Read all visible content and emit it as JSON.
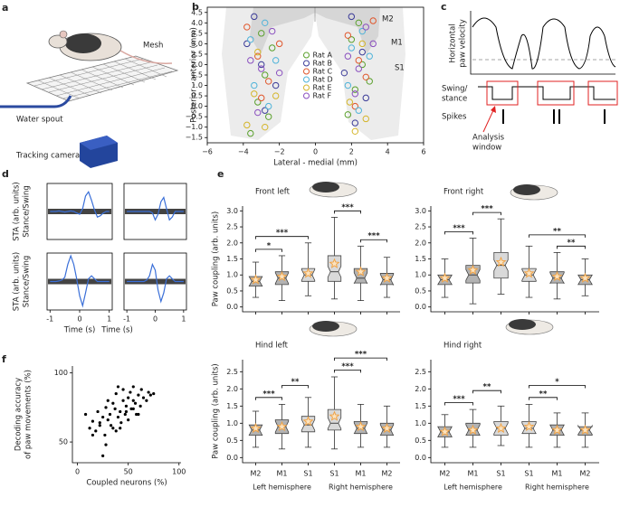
{
  "figure": {
    "panel_labels": [
      "a",
      "b",
      "c",
      "d",
      "e",
      "f"
    ],
    "a": {
      "mesh": "Mesh",
      "water_spout": "Water spout",
      "tracking_camera": "Tracking camera"
    },
    "c": {
      "velocity": [
        "Horizontal",
        "paw velocity"
      ],
      "swing_stance": [
        "Swing/",
        "stance"
      ],
      "spikes": "Spikes",
      "window": [
        "Analysis",
        "window"
      ]
    }
  },
  "chart_data": [
    {
      "type": "scatter",
      "xlabel": "Lateral - medial (mm)",
      "ylabel": "Posterior - anterior (mm)",
      "xlim": [
        -6,
        6
      ],
      "xticks": [
        {
          "value": -6,
          "label": "−6"
        },
        {
          "value": -4,
          "label": "−4"
        },
        {
          "value": -2,
          "label": "−2"
        },
        0,
        2,
        4,
        6
      ],
      "ylim": [
        -1.75,
        4.75
      ],
      "yticks": [
        {
          "value": -1.5,
          "label": "−1.5"
        },
        {
          "value": -1,
          "label": "−1.0"
        },
        {
          "value": -0.5,
          "label": "−0.5"
        },
        {
          "value": 0,
          "label": "0.0"
        },
        0.5,
        {
          "value": 1,
          "label": "1.0"
        },
        1.5,
        {
          "value": 2,
          "label": "2.0"
        },
        2.5,
        {
          "value": 3,
          "label": "3.0"
        },
        3.5,
        {
          "value": 4,
          "label": "4.0"
        },
        4.5
      ],
      "grid": false,
      "frame": "box",
      "marker": "open",
      "legend": "center",
      "annotations": [
        "M2",
        "M1",
        "S1"
      ],
      "series": [
        {
          "name": "Rat A",
          "color": "#5aa02c",
          "x": [
            -3.6,
            -3.2,
            -2.8,
            -2.4,
            -3.0,
            -2.6,
            1.8,
            2.2,
            2.6,
            2.0,
            2.4,
            3.0
          ],
          "values": [
            -1.3,
            0.2,
            1.5,
            2.8,
            3.5,
            -0.5,
            -0.4,
            0.8,
            2.0,
            3.2,
            4.0,
            1.2
          ]
        },
        {
          "name": "Rat B",
          "color": "#3b3b98",
          "x": [
            -3.4,
            -3.0,
            -2.2,
            -2.8,
            -3.8,
            2.0,
            2.6,
            2.8,
            1.6,
            2.2
          ],
          "values": [
            4.3,
            2.0,
            1.0,
            -0.2,
            3.0,
            4.3,
            2.6,
            0.4,
            1.6,
            -0.8
          ]
        },
        {
          "name": "Rat C",
          "color": "#e0562b",
          "x": [
            -3.8,
            -3.2,
            -2.6,
            -2.0,
            -3.0,
            1.8,
            2.4,
            2.2,
            2.8,
            3.2
          ],
          "values": [
            3.8,
            2.4,
            1.2,
            3.0,
            0.4,
            3.4,
            2.2,
            0.0,
            1.4,
            4.1
          ]
        },
        {
          "name": "Rat D",
          "color": "#4fb3d9",
          "x": [
            -3.6,
            -2.8,
            -2.2,
            -3.4,
            -2.6,
            2.0,
            2.6,
            1.8,
            2.4,
            3.0
          ],
          "values": [
            3.2,
            4.0,
            2.2,
            1.0,
            0.0,
            2.8,
            3.6,
            1.0,
            -0.2,
            2.4
          ]
        },
        {
          "name": "Rat E",
          "color": "#d4b52a",
          "x": [
            -3.8,
            -3.4,
            -2.8,
            -3.2,
            -2.2,
            2.2,
            2.8,
            1.9,
            2.6
          ],
          "values": [
            -0.9,
            0.6,
            -1.0,
            2.6,
            0.5,
            -1.2,
            -0.6,
            0.2,
            3.0
          ]
        },
        {
          "name": "Rat F",
          "color": "#8a4fbf",
          "x": [
            -3.0,
            -3.6,
            -2.4,
            -2.0,
            -3.2,
            2.4,
            1.8,
            2.8,
            2.2,
            3.2
          ],
          "values": [
            1.8,
            2.2,
            3.6,
            1.6,
            -0.3,
            1.8,
            2.4,
            3.8,
            0.6,
            3.0
          ]
        }
      ]
    },
    {
      "type": "line",
      "ylabel": [
        "STA (arb. units)",
        "Stance/Swing"
      ],
      "xlim": [
        -1.1,
        1.1
      ],
      "ylim": [
        -1,
        1
      ],
      "frame": "box",
      "color": "#3a6fd8",
      "x": [
        -1,
        -0.9,
        -0.8,
        -0.7,
        -0.6,
        -0.5,
        -0.4,
        -0.3,
        -0.2,
        -0.1,
        0,
        0.1,
        0.2,
        0.3,
        0.4,
        0.5,
        0.6,
        0.7,
        0.8,
        0.9,
        1
      ],
      "values": [
        0,
        0,
        0,
        0.02,
        0,
        -0.02,
        0,
        0.02,
        0,
        -0.05,
        -0.1,
        0.1,
        0.55,
        0.7,
        0.4,
        0.05,
        -0.2,
        -0.15,
        -0.05,
        0,
        0
      ]
    },
    {
      "type": "line",
      "xlim": [
        -1.1,
        1.1
      ],
      "ylim": [
        -1,
        1
      ],
      "frame": "box",
      "color": "#3a6fd8",
      "x": [
        -1,
        -0.9,
        -0.8,
        -0.7,
        -0.6,
        -0.5,
        -0.4,
        -0.3,
        -0.2,
        -0.1,
        0,
        0.1,
        0.2,
        0.3,
        0.4,
        0.5,
        0.6,
        0.7,
        0.8,
        0.9,
        1
      ],
      "values": [
        0,
        0,
        0,
        0,
        0,
        0,
        0,
        0,
        0,
        -0.05,
        -0.3,
        -0.1,
        0.35,
        0.5,
        0.1,
        -0.3,
        -0.2,
        0,
        0,
        0,
        0
      ]
    },
    {
      "type": "line",
      "ylabel": [
        "STA (arb. units)",
        "Stance/Swing"
      ],
      "xlabel": "Time (s)",
      "xlim": [
        -1.1,
        1.1
      ],
      "xticks": [
        -1,
        0,
        1
      ],
      "ylim": [
        -1,
        1
      ],
      "frame": "box",
      "color": "#3a6fd8",
      "x": [
        -1,
        -0.9,
        -0.8,
        -0.7,
        -0.6,
        -0.5,
        -0.4,
        -0.3,
        -0.2,
        -0.1,
        0,
        0.1,
        0.2,
        0.3,
        0.4,
        0.5,
        0.6,
        0.7,
        0.8,
        0.9,
        1
      ],
      "values": [
        0,
        0,
        0,
        0.02,
        0.05,
        0.15,
        0.6,
        0.9,
        0.6,
        0.1,
        -0.5,
        -0.85,
        -0.4,
        0.1,
        0.2,
        0.1,
        0,
        0,
        0,
        0,
        0
      ]
    },
    {
      "type": "line",
      "xlabel": "Time (s)",
      "xlim": [
        -1.1,
        1.1
      ],
      "xticks": [
        -1,
        0,
        1
      ],
      "ylim": [
        -1,
        1
      ],
      "frame": "box",
      "color": "#3a6fd8",
      "x": [
        -1,
        -0.9,
        -0.8,
        -0.7,
        -0.6,
        -0.5,
        -0.4,
        -0.3,
        -0.2,
        -0.1,
        0,
        0.1,
        0.2,
        0.3,
        0.4,
        0.5,
        0.6,
        0.7,
        0.8,
        0.9,
        1
      ],
      "values": [
        0,
        0,
        0,
        0,
        0,
        0,
        0,
        0.05,
        0.2,
        0.6,
        0.4,
        -0.3,
        -0.7,
        -0.4,
        0.1,
        0.2,
        0.1,
        0,
        0,
        0,
        0
      ]
    },
    {
      "type": "scatter",
      "xlabel": "Coupled neurons (%)",
      "ylabel": [
        "Decoding accuracy",
        "of paw movements (%)"
      ],
      "xlim": [
        -5,
        102
      ],
      "xticks": [
        0,
        50,
        100
      ],
      "ylim": [
        35,
        105
      ],
      "yticks": [
        50,
        100
      ],
      "grid": false,
      "frame": "axes",
      "marker": "filled",
      "series": [
        {
          "color": "#000000",
          "x": [
            8,
            12,
            15,
            18,
            20,
            22,
            25,
            27,
            28,
            30,
            30,
            32,
            33,
            35,
            35,
            37,
            38,
            40,
            40,
            42,
            43,
            45,
            45,
            47,
            48,
            50,
            50,
            52,
            53,
            55,
            55,
            57,
            58,
            60,
            62,
            63,
            65,
            68,
            70,
            72,
            25,
            28,
            15,
            22,
            38,
            42,
            48,
            55,
            60,
            75
          ],
          "values": [
            70,
            60,
            65,
            58,
            72,
            62,
            68,
            55,
            75,
            66,
            80,
            70,
            62,
            78,
            60,
            74,
            85,
            68,
            90,
            72,
            64,
            80,
            88,
            70,
            76,
            82,
            66,
            86,
            74,
            80,
            90,
            78,
            70,
            84,
            76,
            88,
            82,
            80,
            86,
            84,
            40,
            48,
            55,
            64,
            58,
            60,
            72,
            74,
            70,
            85
          ]
        }
      ]
    },
    {
      "type": "box",
      "title": "Front left",
      "ylabel": "Paw coupling (arb. units)",
      "ylim": [
        -0.15,
        3.15
      ],
      "yticks": [
        {
          "value": 0,
          "label": "0.0"
        },
        0.5,
        {
          "value": 1,
          "label": "1.0"
        },
        1.5,
        {
          "value": 2,
          "label": "2.0"
        },
        2.5,
        {
          "value": 3,
          "label": "3.0"
        }
      ],
      "frame": "axes",
      "box_colors": [
        "#b3b3b3",
        "#b3b3b3",
        "#d9d9d9",
        "#d9d9d9",
        "#b3b3b3",
        "#b3b3b3"
      ],
      "mean_color": "#f0a040",
      "whislo": [
        0.3,
        0.2,
        0.35,
        0.25,
        0.2,
        0.3
      ],
      "q1": [
        0.65,
        0.7,
        0.8,
        0.8,
        0.75,
        0.7
      ],
      "med": [
        0.8,
        0.9,
        1.0,
        1.1,
        0.9,
        0.85
      ],
      "q3": [
        0.95,
        1.1,
        1.2,
        1.6,
        1.2,
        1.05
      ],
      "whishi": [
        1.4,
        1.6,
        2.0,
        2.8,
        1.9,
        1.55
      ],
      "mean": [
        0.85,
        0.95,
        1.05,
        1.35,
        1.1,
        0.9
      ],
      "brackets": [
        {
          "span": [
            0,
            1
          ],
          "label": "*"
        },
        {
          "span": [
            0,
            2
          ],
          "label": "***"
        },
        {
          "span": [
            3,
            4
          ],
          "label": "***"
        },
        {
          "span": [
            4,
            5
          ],
          "label": "***"
        }
      ]
    },
    {
      "type": "box",
      "title": "Front right",
      "ylim": [
        -0.15,
        3.15
      ],
      "yticks": [
        {
          "value": 0,
          "label": "0.0"
        },
        0.5,
        {
          "value": 1,
          "label": "1.0"
        },
        1.5,
        {
          "value": 2,
          "label": "2.0"
        },
        2.5,
        {
          "value": 3,
          "label": "3.0"
        }
      ],
      "frame": "axes",
      "box_colors": [
        "#b3b3b3",
        "#b3b3b3",
        "#d9d9d9",
        "#d9d9d9",
        "#b3b3b3",
        "#b3b3b3"
      ],
      "mean_color": "#f0a040",
      "whislo": [
        0.3,
        0.1,
        0.4,
        0.3,
        0.25,
        0.35
      ],
      "q1": [
        0.7,
        0.75,
        0.9,
        0.8,
        0.75,
        0.7
      ],
      "med": [
        0.85,
        1.0,
        1.3,
        1.0,
        0.9,
        0.85
      ],
      "q3": [
        1.0,
        1.3,
        1.7,
        1.2,
        1.1,
        1.0
      ],
      "whishi": [
        1.5,
        2.15,
        2.75,
        1.9,
        1.7,
        1.5
      ],
      "mean": [
        0.9,
        1.15,
        1.4,
        1.05,
        0.95,
        0.9
      ],
      "brackets": [
        {
          "span": [
            0,
            1
          ],
          "label": "***"
        },
        {
          "span": [
            1,
            2
          ],
          "label": "***"
        },
        {
          "span": [
            4,
            5
          ],
          "label": "**"
        },
        {
          "span": [
            3,
            5
          ],
          "label": "**"
        }
      ]
    },
    {
      "type": "box",
      "title": "Hind left",
      "ylabel": "Paw coupling (arb. units)",
      "ylim": [
        -0.15,
        2.85
      ],
      "yticks": [
        {
          "value": 0,
          "label": "0.0"
        },
        0.5,
        {
          "value": 1,
          "label": "1.0"
        },
        1.5,
        {
          "value": 2,
          "label": "2.0"
        },
        2.5
      ],
      "frame": "axes",
      "box_colors": [
        "#b3b3b3",
        "#b3b3b3",
        "#d9d9d9",
        "#d9d9d9",
        "#b3b3b3",
        "#b3b3b3"
      ],
      "mean_color": "#f0a040",
      "categories": [
        "M2",
        "M1",
        "S1",
        "S1",
        "M1",
        "M2"
      ],
      "groups": [
        "Left hemisphere",
        "Right hemisphere"
      ],
      "whislo": [
        0.3,
        0.25,
        0.3,
        0.25,
        0.3,
        0.3
      ],
      "q1": [
        0.65,
        0.7,
        0.75,
        0.8,
        0.7,
        0.65
      ],
      "med": [
        0.8,
        0.9,
        0.95,
        1.0,
        0.85,
        0.8
      ],
      "q3": [
        0.95,
        1.1,
        1.2,
        1.4,
        1.05,
        1.0
      ],
      "whishi": [
        1.35,
        1.55,
        1.75,
        2.35,
        1.55,
        1.5
      ],
      "mean": [
        0.85,
        0.9,
        1.05,
        1.2,
        0.9,
        0.85
      ],
      "brackets": [
        {
          "span": [
            0,
            1
          ],
          "label": "***"
        },
        {
          "span": [
            1,
            2
          ],
          "label": "**"
        },
        {
          "span": [
            3,
            4
          ],
          "label": "***"
        },
        {
          "span": [
            3,
            5
          ],
          "label": "***"
        }
      ]
    },
    {
      "type": "box",
      "title": "Hind right",
      "ylim": [
        -0.15,
        2.85
      ],
      "yticks": [
        {
          "value": 0,
          "label": "0.0"
        },
        0.5,
        {
          "value": 1,
          "label": "1.0"
        },
        1.5,
        {
          "value": 2,
          "label": "2.0"
        },
        2.5
      ],
      "frame": "axes",
      "box_colors": [
        "#b3b3b3",
        "#b3b3b3",
        "#d9d9d9",
        "#d9d9d9",
        "#b3b3b3",
        "#b3b3b3"
      ],
      "mean_color": "#f0a040",
      "categories": [
        "M2",
        "M1",
        "S1",
        "S1",
        "M1",
        "M2"
      ],
      "groups": [
        "Left hemisphere",
        "Right hemisphere"
      ],
      "whislo": [
        0.3,
        0.3,
        0.35,
        0.3,
        0.3,
        0.3
      ],
      "q1": [
        0.6,
        0.65,
        0.65,
        0.7,
        0.65,
        0.65
      ],
      "med": [
        0.75,
        0.8,
        0.85,
        0.85,
        0.8,
        0.8
      ],
      "q3": [
        0.9,
        1.0,
        1.05,
        1.05,
        0.95,
        0.9
      ],
      "whishi": [
        1.25,
        1.4,
        1.5,
        1.55,
        1.3,
        1.3
      ],
      "mean": [
        0.75,
        0.8,
        0.85,
        0.9,
        0.8,
        0.8
      ],
      "brackets": [
        {
          "span": [
            0,
            1
          ],
          "label": "***"
        },
        {
          "span": [
            1,
            2
          ],
          "label": "**"
        },
        {
          "span": [
            3,
            4
          ],
          "label": "**"
        },
        {
          "span": [
            3,
            5
          ],
          "label": "*"
        }
      ]
    }
  ]
}
